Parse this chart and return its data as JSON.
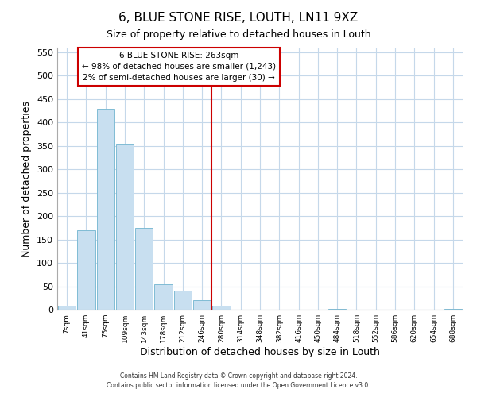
{
  "title": "6, BLUE STONE RISE, LOUTH, LN11 9XZ",
  "subtitle": "Size of property relative to detached houses in Louth",
  "xlabel": "Distribution of detached houses by size in Louth",
  "ylabel": "Number of detached properties",
  "bar_labels": [
    "7sqm",
    "41sqm",
    "75sqm",
    "109sqm",
    "143sqm",
    "178sqm",
    "212sqm",
    "246sqm",
    "280sqm",
    "314sqm",
    "348sqm",
    "382sqm",
    "416sqm",
    "450sqm",
    "484sqm",
    "518sqm",
    "552sqm",
    "586sqm",
    "620sqm",
    "654sqm",
    "688sqm"
  ],
  "bar_heights": [
    8,
    170,
    430,
    355,
    175,
    55,
    40,
    20,
    8,
    0,
    0,
    0,
    0,
    0,
    1,
    0,
    0,
    0,
    0,
    0,
    1
  ],
  "bar_color": "#c8dff0",
  "bar_edge_color": "#7fbcd4",
  "vline_x_idx": 7,
  "vline_color": "#cc0000",
  "annotation_title": "6 BLUE STONE RISE: 263sqm",
  "annotation_line1": "← 98% of detached houses are smaller (1,243)",
  "annotation_line2": "2% of semi-detached houses are larger (30) →",
  "annotation_box_color": "#ffffff",
  "annotation_box_edge": "#cc0000",
  "ylim": [
    0,
    560
  ],
  "yticks": [
    0,
    50,
    100,
    150,
    200,
    250,
    300,
    350,
    400,
    450,
    500,
    550
  ],
  "footer1": "Contains HM Land Registry data © Crown copyright and database right 2024.",
  "footer2": "Contains public sector information licensed under the Open Government Licence v3.0.",
  "bg_color": "#ffffff",
  "grid_color": "#c5d8ea"
}
